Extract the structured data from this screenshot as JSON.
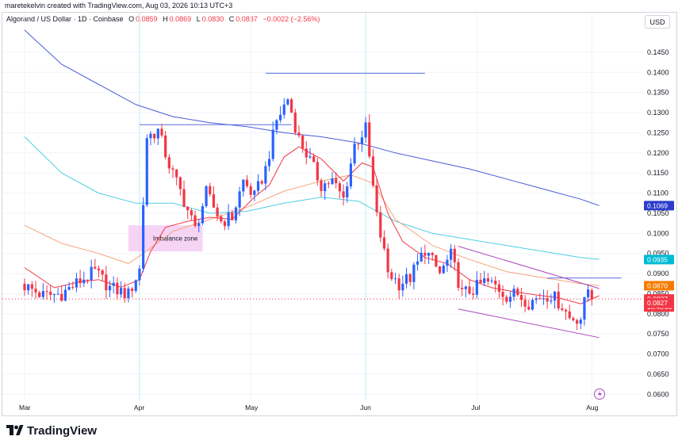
{
  "header": {
    "created_line": "maretekelvin created with TradingView.com, Aug 03, 2026 10:13 UTC+3"
  },
  "legend": {
    "symbol": "Algorand / US Dollar · 1D · Coinbase",
    "o_label": "O",
    "o_value": "0.0859",
    "h_label": "H",
    "h_value": "0.0869",
    "l_label": "L",
    "l_value": "0.0830",
    "c_label": "C",
    "c_value": "0.0837",
    "change": "−0.0022 (−2.56%)"
  },
  "currency": "USD",
  "footer": {
    "brand": "TradingView"
  },
  "colors": {
    "up": "#2962ff",
    "down": "#f23645",
    "ma_long": "#4a5bd8",
    "ma_mid": "#4dd0e1",
    "ma_short_orange": "#f7a57a",
    "ma_short_red": "#f23645",
    "channel": "#ab47bc",
    "level": "#5b6ee0",
    "zone_fill": "#f3c6f0"
  },
  "chart_data": {
    "type": "candlestick",
    "title": "",
    "y_axis": {
      "min": 0.0585,
      "max": 0.1505,
      "ticks": [
        "0.1450",
        "0.1400",
        "0.1350",
        "0.1300",
        "0.1250",
        "0.1200",
        "0.1150",
        "0.1100",
        "0.1050",
        "0.1000",
        "0.0950",
        "0.0900",
        "0.0850",
        "0.0800",
        "0.0750",
        "0.0700",
        "0.0650",
        "0.0600"
      ]
    },
    "x_axis": {
      "ticks": [
        {
          "label": "Mar",
          "day": 0
        },
        {
          "label": "Apr",
          "day": 31
        },
        {
          "label": "May",
          "day": 61
        },
        {
          "label": "Jun",
          "day": 92
        },
        {
          "label": "Jul",
          "day": 122
        },
        {
          "label": "Aug",
          "day": 153
        }
      ]
    },
    "price_labels": [
      {
        "text": "0.1069",
        "value": 0.1069,
        "color": "#2d3ccd"
      },
      {
        "text": "0.0935",
        "value": 0.0935,
        "color": "#00bcd4"
      },
      {
        "text": "0.0870",
        "value": 0.087,
        "color": "#f57c00"
      },
      {
        "text": "0.0837",
        "value": 0.0837,
        "color": "#f23645",
        "sub": "16:46:05"
      },
      {
        "text": "0.0827",
        "value": 0.0827,
        "color": "#f23645"
      }
    ],
    "annotations": [
      {
        "text": "Imbalance zone"
      }
    ],
    "anchors": [
      [
        0,
        0.087
      ],
      [
        5,
        0.0845
      ],
      [
        10,
        0.085
      ],
      [
        15,
        0.0882
      ],
      [
        19,
        0.0905
      ],
      [
        23,
        0.0865
      ],
      [
        28,
        0.0848
      ],
      [
        31,
        0.091
      ],
      [
        33,
        0.124
      ],
      [
        36,
        0.1255
      ],
      [
        39,
        0.117
      ],
      [
        42,
        0.1105
      ],
      [
        46,
        0.101
      ],
      [
        49,
        0.11
      ],
      [
        53,
        0.103
      ],
      [
        56,
        0.104
      ],
      [
        59,
        0.113
      ],
      [
        62,
        0.109
      ],
      [
        65,
        0.116
      ],
      [
        68,
        0.128
      ],
      [
        71,
        0.1335
      ],
      [
        74,
        0.1235
      ],
      [
        77,
        0.118
      ],
      [
        80,
        0.112
      ],
      [
        83,
        0.113
      ],
      [
        86,
        0.1085
      ],
      [
        89,
        0.122
      ],
      [
        92,
        0.126
      ],
      [
        95,
        0.104
      ],
      [
        98,
        0.0905
      ],
      [
        101,
        0.0875
      ],
      [
        104,
        0.089
      ],
      [
        108,
        0.096
      ],
      [
        112,
        0.09
      ],
      [
        115,
        0.0945
      ],
      [
        118,
        0.085
      ],
      [
        121,
        0.086
      ],
      [
        124,
        0.088
      ],
      [
        127,
        0.087
      ],
      [
        130,
        0.0845
      ],
      [
        133,
        0.085
      ],
      [
        136,
        0.0828
      ],
      [
        139,
        0.0843
      ],
      [
        142,
        0.0848
      ],
      [
        145,
        0.082
      ],
      [
        147,
        0.079
      ],
      [
        150,
        0.079
      ],
      [
        152,
        0.0862
      ],
      [
        153,
        0.0837
      ]
    ],
    "moving_averages": [
      {
        "name": "",
        "color": "#4a5bd8",
        "points": [
          [
            0,
            0.1505
          ],
          [
            10,
            0.142
          ],
          [
            20,
            0.137
          ],
          [
            30,
            0.132
          ],
          [
            40,
            0.129
          ],
          [
            50,
            0.1275
          ],
          [
            60,
            0.1265
          ],
          [
            70,
            0.125
          ],
          [
            80,
            0.124
          ],
          [
            90,
            0.1225
          ],
          [
            100,
            0.12
          ],
          [
            110,
            0.118
          ],
          [
            120,
            0.116
          ],
          [
            130,
            0.1135
          ],
          [
            140,
            0.111
          ],
          [
            150,
            0.1085
          ],
          [
            155,
            0.1069
          ]
        ]
      },
      {
        "name": "",
        "color": "#4dd0e1",
        "points": [
          [
            0,
            0.124
          ],
          [
            10,
            0.115
          ],
          [
            20,
            0.11
          ],
          [
            30,
            0.1075
          ],
          [
            40,
            0.1075
          ],
          [
            50,
            0.105
          ],
          [
            60,
            0.1055
          ],
          [
            70,
            0.1075
          ],
          [
            80,
            0.109
          ],
          [
            90,
            0.108
          ],
          [
            100,
            0.103
          ],
          [
            110,
            0.1
          ],
          [
            120,
            0.0985
          ],
          [
            130,
            0.097
          ],
          [
            140,
            0.0955
          ],
          [
            150,
            0.094
          ],
          [
            155,
            0.0935
          ]
        ]
      },
      {
        "name": "",
        "color": "#f7a57a",
        "points": [
          [
            0,
            0.102
          ],
          [
            10,
            0.0975
          ],
          [
            20,
            0.095
          ],
          [
            28,
            0.0925
          ],
          [
            32,
            0.095
          ],
          [
            40,
            0.1005
          ],
          [
            50,
            0.1035
          ],
          [
            60,
            0.1065
          ],
          [
            70,
            0.1105
          ],
          [
            80,
            0.113
          ],
          [
            88,
            0.1145
          ],
          [
            94,
            0.1125
          ],
          [
            100,
            0.1035
          ],
          [
            110,
            0.097
          ],
          [
            120,
            0.0935
          ],
          [
            130,
            0.0905
          ],
          [
            140,
            0.089
          ],
          [
            150,
            0.0875
          ],
          [
            155,
            0.087
          ]
        ]
      },
      {
        "name": "",
        "color": "#f23645",
        "points": [
          [
            0,
            0.0915
          ],
          [
            8,
            0.0865
          ],
          [
            15,
            0.088
          ],
          [
            20,
            0.0885
          ],
          [
            26,
            0.0866
          ],
          [
            31,
            0.0885
          ],
          [
            34,
            0.0955
          ],
          [
            38,
            0.1015
          ],
          [
            44,
            0.103
          ],
          [
            50,
            0.104
          ],
          [
            56,
            0.1035
          ],
          [
            62,
            0.109
          ],
          [
            66,
            0.112
          ],
          [
            70,
            0.119
          ],
          [
            74,
            0.1215
          ],
          [
            80,
            0.1185
          ],
          [
            86,
            0.113
          ],
          [
            91,
            0.1175
          ],
          [
            94,
            0.1165
          ],
          [
            98,
            0.105
          ],
          [
            102,
            0.098
          ],
          [
            108,
            0.094
          ],
          [
            114,
            0.0925
          ],
          [
            120,
            0.0885
          ],
          [
            126,
            0.0865
          ],
          [
            132,
            0.0855
          ],
          [
            138,
            0.0847
          ],
          [
            144,
            0.084
          ],
          [
            150,
            0.0825
          ],
          [
            155,
            0.0845
          ]
        ]
      }
    ],
    "levels": [
      {
        "day_from": 31,
        "day_to": 72,
        "value": 0.127,
        "color": "#5b6ee0"
      },
      {
        "day_from": 65,
        "day_to": 108,
        "value": 0.1398,
        "color": "#5b6ee0"
      },
      {
        "day_from": 141,
        "day_to": 161,
        "value": 0.0889,
        "color": "#5b6ee0"
      }
    ],
    "channel_lines": [
      {
        "from": [
          117,
          0.0968
        ],
        "to": [
          155,
          0.0863
        ]
      },
      {
        "from": [
          117,
          0.0812
        ],
        "to": [
          155,
          0.0741
        ]
      }
    ],
    "zone": {
      "day_from": 28,
      "day_to": 48,
      "top": 0.102,
      "bottom": 0.0955
    }
  }
}
